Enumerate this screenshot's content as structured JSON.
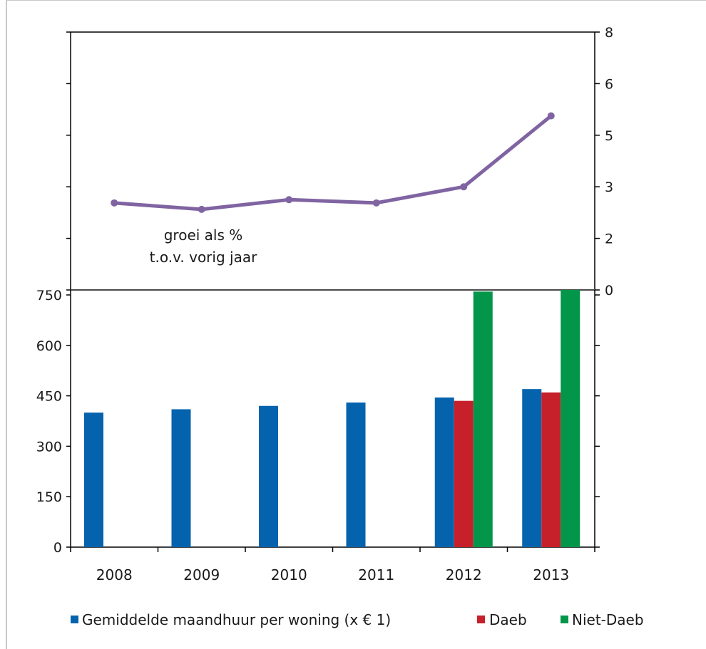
{
  "chart_data": [
    {
      "type": "line",
      "categories": [
        "2008",
        "2009",
        "2010",
        "2011",
        "2012",
        "2013"
      ],
      "series": [
        {
          "values": [
            2.7,
            2.5,
            2.8,
            2.7,
            3.2,
            5.4
          ],
          "color": "#8064a2"
        }
      ],
      "yaxis_position": "right",
      "yticks": [
        "0",
        "2",
        "3",
        "5",
        "6",
        "8"
      ],
      "annotation": [
        "groei als %",
        "t.o.v. vorig jaar"
      ],
      "grid": false
    },
    {
      "type": "bar",
      "categories": [
        "2008",
        "2009",
        "2010",
        "2011",
        "2012",
        "2013"
      ],
      "series": [
        {
          "name": "Gemiddelde maandhuur per woning (x € 1)",
          "color": "#0563ae",
          "values": [
            400,
            410,
            420,
            430,
            445,
            470
          ]
        },
        {
          "name": "Daeb",
          "color": "#c6202a",
          "values": [
            null,
            null,
            null,
            null,
            435,
            460
          ]
        },
        {
          "name": "Niet-Daeb",
          "color": "#03964a",
          "values": [
            null,
            null,
            null,
            null,
            760,
            765
          ]
        }
      ],
      "yticks": [
        "0",
        "150",
        "300",
        "450",
        "600",
        "750"
      ],
      "ylim": [
        0,
        750
      ],
      "grid": false,
      "legend_position": "bottom"
    }
  ]
}
